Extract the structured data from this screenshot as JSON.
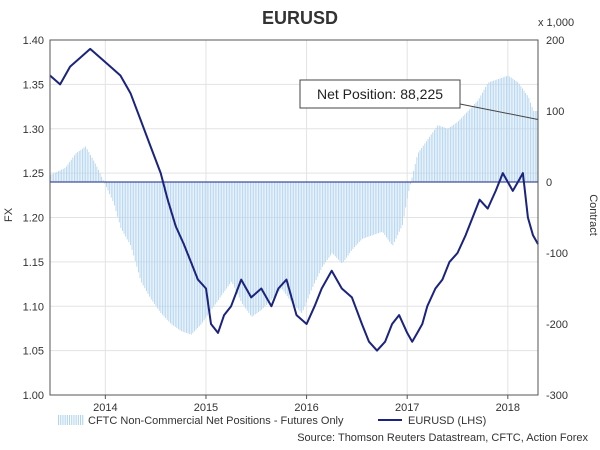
{
  "chart_data": {
    "type": "bar+line",
    "title": "EURUSD",
    "left_axis": {
      "label": "FX",
      "ylim": [
        1.0,
        1.4
      ],
      "ticks": [
        "1.00",
        "1.05",
        "1.10",
        "1.15",
        "1.20",
        "1.25",
        "1.30",
        "1.35",
        "1.40"
      ]
    },
    "right_axis": {
      "label": "Contract",
      "unit_note": "x 1,000",
      "ylim": [
        -300,
        200
      ],
      "ticks": [
        "-300",
        "-200",
        "-100",
        "0",
        "100",
        "200"
      ]
    },
    "x_axis": {
      "range": [
        2013.45,
        2018.3
      ],
      "ticks": [
        {
          "label": "2014",
          "x": 2014.0
        },
        {
          "label": "2015",
          "x": 2015.0
        },
        {
          "label": "2016",
          "x": 2016.0
        },
        {
          "label": "2017",
          "x": 2017.0
        },
        {
          "label": "2018",
          "x": 2018.0
        }
      ]
    },
    "grid": true,
    "legend_position": "bottom",
    "series": [
      {
        "name": "CFTC Non-Commercial Net Positions - Futures Only",
        "kind": "bar",
        "axis": "right",
        "color": "#b3d4ee",
        "x": [
          2013.45,
          2013.6,
          2013.7,
          2013.8,
          2013.9,
          2014.0,
          2014.08,
          2014.15,
          2014.25,
          2014.35,
          2014.45,
          2014.55,
          2014.65,
          2014.75,
          2014.85,
          2014.95,
          2015.05,
          2015.15,
          2015.25,
          2015.35,
          2015.45,
          2015.55,
          2015.65,
          2015.75,
          2015.85,
          2015.95,
          2016.05,
          2016.15,
          2016.25,
          2016.35,
          2016.45,
          2016.55,
          2016.65,
          2016.75,
          2016.85,
          2016.95,
          2017.0,
          2017.1,
          2017.2,
          2017.3,
          2017.4,
          2017.5,
          2017.6,
          2017.7,
          2017.8,
          2017.9,
          2018.0,
          2018.1,
          2018.2,
          2018.25
        ],
        "values": [
          10,
          20,
          40,
          50,
          25,
          -5,
          -30,
          -65,
          -90,
          -140,
          -165,
          -185,
          -200,
          -210,
          -215,
          -200,
          -180,
          -160,
          -140,
          -170,
          -190,
          -180,
          -165,
          -150,
          -170,
          -185,
          -150,
          -120,
          -100,
          -115,
          -95,
          -80,
          -75,
          -70,
          -90,
          -60,
          -20,
          40,
          60,
          80,
          75,
          85,
          100,
          115,
          140,
          145,
          150,
          140,
          120,
          100
        ]
      },
      {
        "name": "EURUSD (LHS)",
        "kind": "line",
        "axis": "left",
        "color": "#1a237e",
        "x": [
          2013.45,
          2013.55,
          2013.65,
          2013.75,
          2013.85,
          2013.95,
          2014.05,
          2014.15,
          2014.25,
          2014.35,
          2014.45,
          2014.55,
          2014.62,
          2014.7,
          2014.78,
          2014.85,
          2014.92,
          2015.0,
          2015.05,
          2015.12,
          2015.18,
          2015.25,
          2015.35,
          2015.45,
          2015.55,
          2015.65,
          2015.72,
          2015.8,
          2015.9,
          2016.0,
          2016.08,
          2016.15,
          2016.25,
          2016.35,
          2016.45,
          2016.55,
          2016.62,
          2016.7,
          2016.78,
          2016.85,
          2016.92,
          2017.0,
          2017.05,
          2017.1,
          2017.15,
          2017.2,
          2017.28,
          2017.35,
          2017.42,
          2017.5,
          2017.58,
          2017.65,
          2017.72,
          2017.8,
          2017.88,
          2017.95,
          2018.0,
          2018.05,
          2018.1,
          2018.15,
          2018.2,
          2018.25,
          2018.3
        ],
        "values": [
          1.36,
          1.35,
          1.37,
          1.38,
          1.39,
          1.38,
          1.37,
          1.36,
          1.34,
          1.31,
          1.28,
          1.25,
          1.22,
          1.19,
          1.17,
          1.15,
          1.13,
          1.12,
          1.08,
          1.07,
          1.09,
          1.1,
          1.13,
          1.11,
          1.12,
          1.1,
          1.12,
          1.13,
          1.09,
          1.08,
          1.1,
          1.12,
          1.14,
          1.12,
          1.11,
          1.08,
          1.06,
          1.05,
          1.06,
          1.08,
          1.09,
          1.07,
          1.06,
          1.07,
          1.08,
          1.1,
          1.12,
          1.13,
          1.15,
          1.16,
          1.18,
          1.2,
          1.22,
          1.21,
          1.23,
          1.25,
          1.24,
          1.23,
          1.24,
          1.25,
          1.2,
          1.18,
          1.17
        ]
      }
    ],
    "annotation": {
      "text": "Net Position: 88,225",
      "anchor": {
        "x": 2018.3,
        "y_right": 88
      }
    },
    "legend": [
      {
        "label": "CFTC Non-Commercial Net Positions - Futures Only",
        "kind": "bar"
      },
      {
        "label": "EURUSD (LHS)",
        "kind": "line"
      }
    ],
    "source": "Source: Thomson Reuters Datastream, CFTC, Action Forex"
  }
}
